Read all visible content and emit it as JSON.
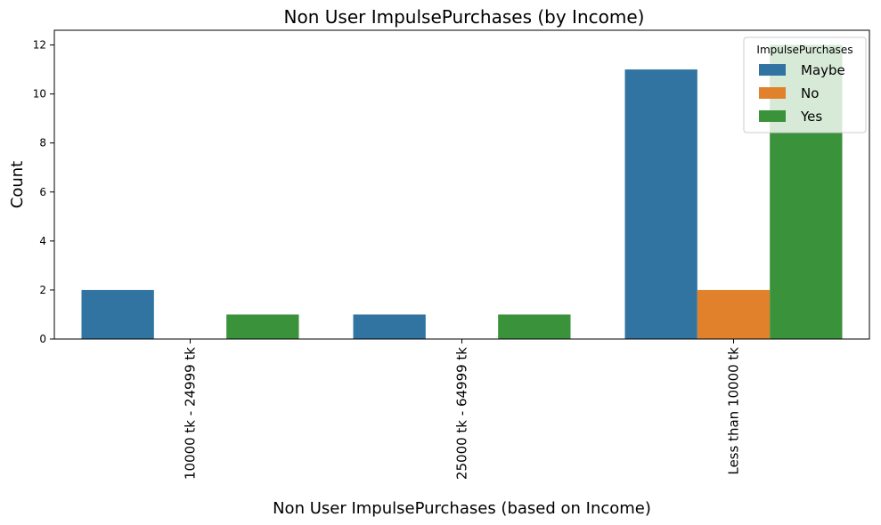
{
  "chart_data": {
    "type": "bar",
    "title": "Non User ImpulsePurchases (by Income)",
    "xlabel": "Non User ImpulsePurchases (based on Income)",
    "ylabel": "Count",
    "categories": [
      "10000 tk - 24999 tk",
      "25000 tk - 64999 tk",
      "Less than 10000 tk"
    ],
    "series": [
      {
        "name": "Maybe",
        "color": "#3274a1",
        "values": [
          2,
          1,
          11
        ]
      },
      {
        "name": "No",
        "color": "#e1812c",
        "values": [
          0,
          0,
          2
        ]
      },
      {
        "name": "Yes",
        "color": "#3a923a",
        "values": [
          1,
          1,
          12
        ]
      }
    ],
    "ylim": [
      0,
      12.6
    ],
    "yticks": [
      0,
      2,
      4,
      6,
      8,
      10,
      12
    ],
    "legend": {
      "title": "ImpulsePurchases",
      "position": "top-right"
    },
    "grid": false
  }
}
